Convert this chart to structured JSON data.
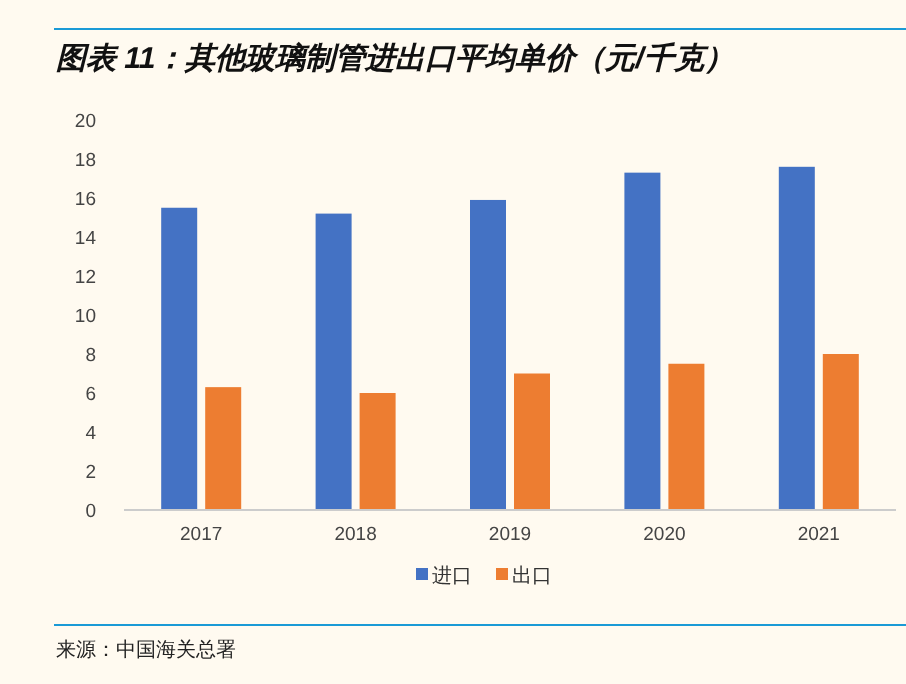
{
  "chart_data": {
    "type": "bar",
    "title": "图表 11：其他玻璃制管进出口平均单价（元/千克）",
    "categories": [
      "2017",
      "2018",
      "2019",
      "2020",
      "2021"
    ],
    "series": [
      {
        "name": "进口",
        "color": "#4472c4",
        "values": [
          15.5,
          15.2,
          15.9,
          17.3,
          17.6
        ]
      },
      {
        "name": "出口",
        "color": "#ed7d31",
        "values": [
          6.3,
          6.0,
          7.0,
          7.5,
          8.0
        ]
      }
    ],
    "ylim": [
      0,
      20
    ],
    "yticks": [
      0,
      2,
      4,
      6,
      8,
      10,
      12,
      14,
      16,
      18,
      20
    ],
    "grid": false,
    "legend": "bottom",
    "annotations": [
      "来源：中国海关总署"
    ]
  }
}
